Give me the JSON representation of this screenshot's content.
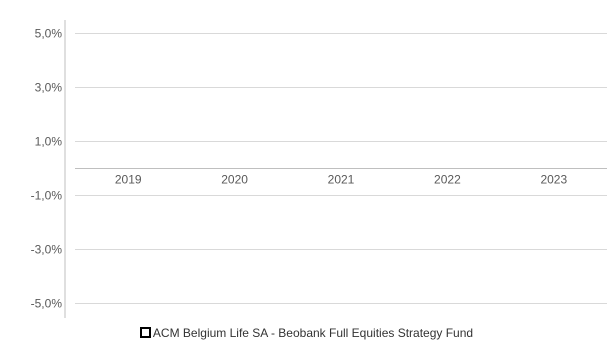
{
  "chart_data": {
    "type": "bar",
    "categories": [
      "2019",
      "2020",
      "2021",
      "2022",
      "2023"
    ],
    "series": [
      {
        "name": "ACM Belgium Life SA - Beobank Full Equities Strategy Fund",
        "values": [
          null,
          null,
          null,
          null,
          null
        ]
      }
    ],
    "ylim": [
      -5,
      5
    ],
    "yticks": [
      5,
      3,
      1,
      -1,
      -3,
      -5
    ],
    "ytick_labels": [
      "5,0%",
      "3,0%",
      "1,0%",
      "-1,0%",
      "-3,0%",
      "-5,0%"
    ],
    "grid": true,
    "legend_position": "bottom",
    "colors": {
      "gridline": "#d9d9d9",
      "axis": "#bfbfbf",
      "tick_text": "#595959",
      "legend_marker": "#000000"
    }
  }
}
